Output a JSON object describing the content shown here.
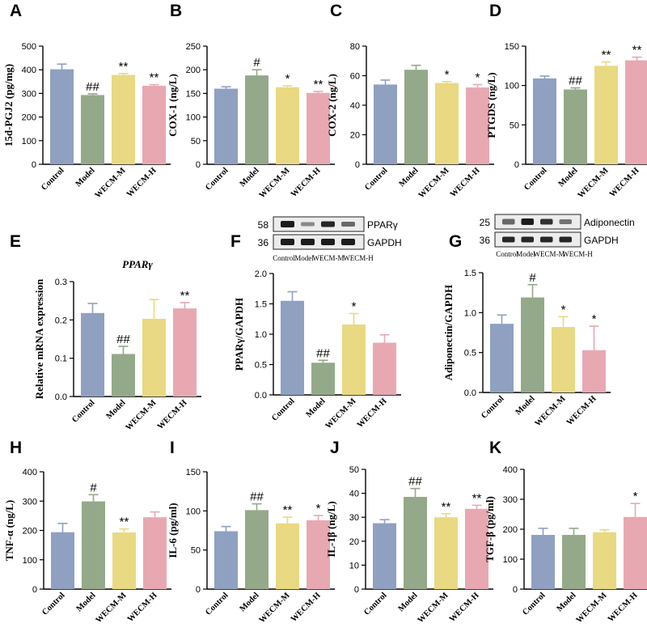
{
  "colors": {
    "control": "#8fa0c1",
    "model": "#94a989",
    "wecm_m": "#e8d982",
    "wecm_h": "#e8a8b2"
  },
  "chart_data": [
    {
      "letter": "A",
      "type": "bar",
      "ylabel": "15d-PGJ2 (pg/mg)",
      "ylim": [
        0,
        500
      ],
      "ticks": [
        0,
        100,
        200,
        300,
        400,
        500
      ],
      "categories": [
        "Control",
        "Model",
        "WECM-M",
        "WECM-H"
      ],
      "values": [
        402,
        293,
        378,
        332
      ],
      "errors": [
        22,
        5,
        6,
        5
      ],
      "sig": [
        "",
        "##",
        "**",
        "**"
      ]
    },
    {
      "letter": "B",
      "type": "bar",
      "ylabel": "COX-1 (ng/L)",
      "ylim": [
        0,
        250
      ],
      "ticks": [
        0,
        50,
        100,
        150,
        200,
        250
      ],
      "categories": [
        "Control",
        "Model",
        "WECM-M",
        "WECM-H"
      ],
      "values": [
        160,
        188,
        163,
        151
      ],
      "errors": [
        4,
        12,
        3,
        3
      ],
      "sig": [
        "",
        "#",
        "*",
        "**"
      ]
    },
    {
      "letter": "C",
      "type": "bar",
      "ylabel": "COX-2 (ng/L)",
      "ylim": [
        0,
        80
      ],
      "ticks": [
        0,
        20,
        40,
        60,
        80
      ],
      "categories": [
        "Control",
        "Model",
        "WECM-M",
        "WECM-H"
      ],
      "values": [
        54,
        64,
        55,
        52
      ],
      "errors": [
        3,
        3,
        1,
        2
      ],
      "sig": [
        "",
        "",
        "*",
        "*"
      ]
    },
    {
      "letter": "D",
      "type": "bar",
      "ylabel": "PTGDS (ng/L)",
      "ylim": [
        0,
        150
      ],
      "ticks": [
        0,
        50,
        100,
        150
      ],
      "categories": [
        "Control",
        "Model",
        "WECM-M",
        "WECM-H"
      ],
      "values": [
        109,
        95,
        125,
        132
      ],
      "errors": [
        3,
        2,
        5,
        4
      ],
      "sig": [
        "",
        "##",
        "**",
        "**"
      ]
    },
    {
      "letter": "E",
      "type": "bar",
      "title": "PPARγ",
      "ylabel": "Relative mRNA expression",
      "ylim": [
        0,
        0.3
      ],
      "ticks": [
        0.0,
        0.1,
        0.2,
        0.3
      ],
      "categories": [
        "Control",
        "Model",
        "WECM-M",
        "WECM-H"
      ],
      "values": [
        0.218,
        0.111,
        0.203,
        0.23
      ],
      "errors": [
        0.025,
        0.02,
        0.05,
        0.015
      ],
      "sig": [
        "",
        "##",
        "",
        "**"
      ]
    },
    {
      "letter": "F",
      "type": "bar",
      "ylabel": "PPARγ/GAPDH",
      "ylim": [
        0,
        2.0
      ],
      "ticks": [
        0.0,
        0.5,
        1.0,
        1.5,
        2.0
      ],
      "categories": [
        "Control",
        "Model",
        "WECM-M",
        "WECM-H"
      ],
      "values": [
        1.55,
        0.53,
        1.16,
        0.86
      ],
      "errors": [
        0.15,
        0.04,
        0.18,
        0.13
      ],
      "sig": [
        "",
        "##",
        "*",
        ""
      ]
    },
    {
      "letter": "G",
      "type": "bar",
      "ylabel": "Adiponectin/GAPDH",
      "ylim": [
        0,
        1.5
      ],
      "ticks": [
        0.0,
        0.5,
        1.0,
        1.5
      ],
      "categories": [
        "Control",
        "Model",
        "WECM-M",
        "WECM-H"
      ],
      "values": [
        0.86,
        1.19,
        0.82,
        0.53
      ],
      "errors": [
        0.11,
        0.16,
        0.13,
        0.3
      ],
      "sig": [
        "",
        "#",
        "*",
        "*"
      ]
    },
    {
      "letter": "H",
      "type": "bar",
      "ylabel": "TNF-α (ng/L)",
      "ylim": [
        0,
        400
      ],
      "ticks": [
        0,
        100,
        200,
        300,
        400
      ],
      "categories": [
        "Control",
        "Model",
        "WECM-M",
        "WECM-H"
      ],
      "values": [
        194,
        299,
        193,
        245
      ],
      "errors": [
        30,
        23,
        12,
        18
      ],
      "sig": [
        "",
        "#",
        "**",
        ""
      ]
    },
    {
      "letter": "I",
      "type": "bar",
      "ylabel": "IL-6 (pg/ml)",
      "ylim": [
        0,
        150
      ],
      "ticks": [
        0,
        50,
        100,
        150
      ],
      "categories": [
        "Control",
        "Model",
        "WECM-M",
        "WECM-H"
      ],
      "values": [
        74,
        101,
        84,
        88
      ],
      "errors": [
        6,
        8,
        8,
        6
      ],
      "sig": [
        "",
        "##",
        "**",
        "*"
      ]
    },
    {
      "letter": "J",
      "type": "bar",
      "ylabel": "IL-1β (ng/L)",
      "ylim": [
        0,
        50
      ],
      "ticks": [
        0,
        10,
        20,
        30,
        40,
        50
      ],
      "categories": [
        "Control",
        "Model",
        "WECM-M",
        "WECM-H"
      ],
      "values": [
        27.5,
        38.5,
        30,
        33.5
      ],
      "errors": [
        1.5,
        3.5,
        1.5,
        1.5
      ],
      "sig": [
        "",
        "##",
        "**",
        "**"
      ]
    },
    {
      "letter": "K",
      "type": "bar",
      "ylabel": "TGF-β (pg/ml)",
      "ylim": [
        0,
        400
      ],
      "ticks": [
        0,
        100,
        200,
        300,
        400
      ],
      "categories": [
        "Control",
        "Model",
        "WECM-M",
        "WECM-H"
      ],
      "values": [
        181,
        181,
        190,
        241
      ],
      "errors": [
        22,
        22,
        8,
        45
      ],
      "sig": [
        "",
        "",
        "",
        "*"
      ]
    }
  ],
  "blots": {
    "F": {
      "markers": [
        "58",
        "36"
      ],
      "proteins": [
        "PPARγ",
        "GAPDH"
      ],
      "lanes": [
        "Control",
        "Model",
        "WECM-M",
        "WECM-H"
      ]
    },
    "G": {
      "markers": [
        "25",
        "36"
      ],
      "proteins": [
        "Adiponectin",
        "GAPDH"
      ],
      "lanes": [
        "Control",
        "Model",
        "WECM-M",
        "WECM-H"
      ]
    }
  }
}
